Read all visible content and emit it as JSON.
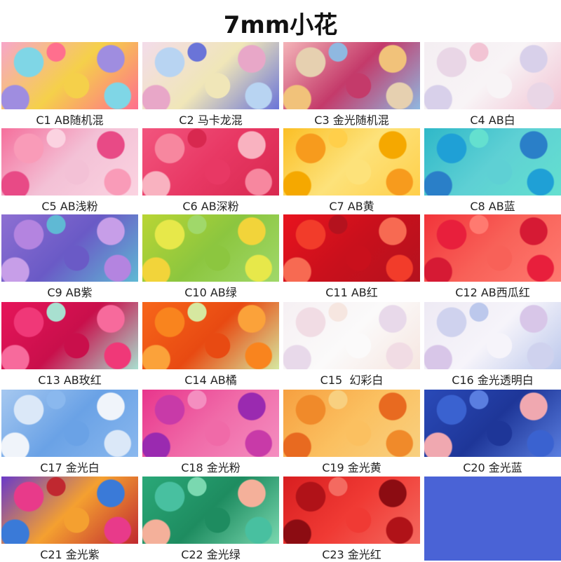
{
  "header": {
    "title": "7mm小花"
  },
  "items": [
    {
      "label": "C1 AB随机混"
    },
    {
      "label": "C2 马卡龙混"
    },
    {
      "label": "C3 金光随机混"
    },
    {
      "label": "C4 AB白"
    },
    {
      "label": "C5 AB浅粉"
    },
    {
      "label": "C6 AB深粉"
    },
    {
      "label": "C7 AB黄"
    },
    {
      "label": "C8 AB蓝"
    },
    {
      "label": "C9 AB紫"
    },
    {
      "label": "C10 AB绿"
    },
    {
      "label": "C11 AB红"
    },
    {
      "label": "C12 AB西瓜红"
    },
    {
      "label": "C13 AB玫红"
    },
    {
      "label": "C14 AB橘"
    },
    {
      "label": "C15  幻彩白"
    },
    {
      "label": "C16 金光透明白"
    },
    {
      "label": "C17 金光白"
    },
    {
      "label": "C18 金光粉"
    },
    {
      "label": "C19 金光黄"
    },
    {
      "label": "C20 金光蓝"
    },
    {
      "label": "C21 金光紫"
    },
    {
      "label": "C22 金光绿"
    },
    {
      "label": "C23 金光红"
    }
  ]
}
